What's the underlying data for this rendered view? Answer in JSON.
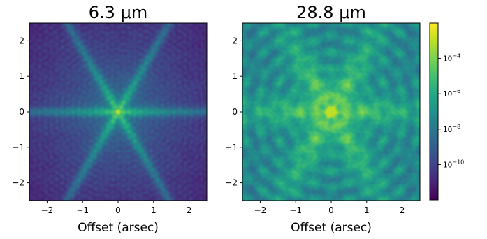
{
  "chart_data": [
    {
      "type": "heatmap",
      "title": "6.3 μm",
      "xlabel": "Offset (arsec)",
      "ylabel": "",
      "xlim": [
        -2.5,
        2.5
      ],
      "ylim": [
        -2.5,
        2.5
      ],
      "xticks": [
        -2,
        -1,
        0,
        1,
        2
      ],
      "yticks": [
        -2,
        -1,
        0,
        1,
        2
      ],
      "xtick_labels": [
        "−2",
        "−1",
        "0",
        "1",
        "2"
      ],
      "ytick_labels": [
        "−2",
        "−1",
        "0",
        "1",
        "2"
      ],
      "scale": "log",
      "colormap": "viridis",
      "description_values": {
        "peak": 0.001,
        "floor": 1e-11,
        "spike_angles_deg": [
          0,
          60,
          120
        ],
        "wavelength_um": 6.3
      }
    },
    {
      "type": "heatmap",
      "title": "28.8 μm",
      "xlabel": "Offset (arsec)",
      "ylabel": "",
      "xlim": [
        -2.5,
        2.5
      ],
      "ylim": [
        -2.5,
        2.5
      ],
      "xticks": [
        -2,
        -1,
        0,
        1,
        2
      ],
      "yticks": [
        -2,
        -1,
        0,
        1,
        2
      ],
      "xtick_labels": [
        "−2",
        "−1",
        "0",
        "1",
        "2"
      ],
      "ytick_labels": [
        "−2",
        "−1",
        "0",
        "1",
        "2"
      ],
      "scale": "log",
      "colormap": "viridis",
      "description_values": {
        "peak": 0.001,
        "floor": 1e-11,
        "spike_angles_deg": [
          0,
          60,
          120
        ],
        "wavelength_um": 28.8
      }
    }
  ],
  "colorbar": {
    "scale": "log",
    "min": 1e-12,
    "max": 0.01,
    "ticks": [
      {
        "value": 0.0001,
        "base": "10",
        "exp": "−4"
      },
      {
        "value": 1e-06,
        "base": "10",
        "exp": "−6"
      },
      {
        "value": 1e-08,
        "base": "10",
        "exp": "−8"
      },
      {
        "value": 1e-10,
        "base": "10",
        "exp": "−10"
      }
    ]
  }
}
